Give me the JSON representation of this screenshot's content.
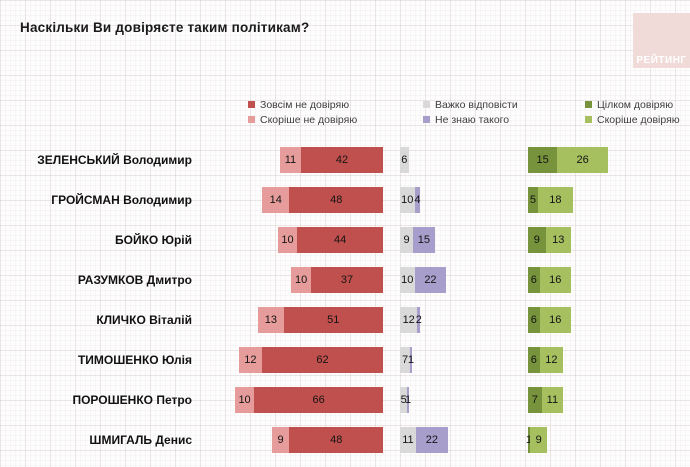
{
  "title": "Наскільки Ви довіряєте таким політикам?",
  "logo": {
    "text": "РЕЙТИНГ",
    "bg_color": "#f1dbd8"
  },
  "legend": {
    "items": [
      {
        "label": "Зовсім не довіряю",
        "color": "#c0504d"
      },
      {
        "label": "Скоріше не довіряю",
        "color": "#e59c9b"
      },
      {
        "label": "Важко відповісти",
        "color": "#d9d9d9"
      },
      {
        "label": "Не знаю такого",
        "color": "#a79ecb"
      },
      {
        "label": "Цілком довіряю",
        "color": "#77933c"
      },
      {
        "label": "Скоріше довіряю",
        "color": "#a6c060"
      }
    ]
  },
  "chart_data": {
    "type": "bar",
    "subtype": "horizontal-stacked-diverging",
    "unit": "%",
    "title": "Наскільки Ви довіряєте таким політикам?",
    "legend_position": "top",
    "value_labels": "inside",
    "categories": [
      "ЗЕЛЕНСЬКИЙ Володимир",
      "ГРОЙСМАН Володимир",
      "БОЙКО Юрій",
      "РАЗУМКОВ Дмитро",
      "КЛИЧКО Віталій",
      "ТИМОШЕНКО Юлія",
      "ПОРОШЕНКО Петро",
      "ШМИГАЛЬ Денис"
    ],
    "series": [
      {
        "name": "Скоріше не довіряю",
        "group": "negative",
        "color": "#e59c9b",
        "values": [
          11,
          14,
          10,
          10,
          13,
          12,
          10,
          9
        ]
      },
      {
        "name": "Зовсім не довіряю",
        "group": "negative",
        "color": "#c0504d",
        "values": [
          42,
          48,
          44,
          37,
          51,
          62,
          66,
          48
        ]
      },
      {
        "name": "Важко відповісти",
        "group": "neutral",
        "color": "#d9d9d9",
        "values": [
          6,
          10,
          9,
          10,
          12,
          7,
          5,
          11
        ]
      },
      {
        "name": "Не знаю такого",
        "group": "neutral",
        "color": "#a79ecb",
        "values": [
          0,
          4,
          15,
          22,
          2,
          1,
          1,
          22
        ]
      },
      {
        "name": "Цілком довіряю",
        "group": "positive",
        "color": "#77933c",
        "values": [
          15,
          5,
          9,
          6,
          6,
          6,
          7,
          1
        ]
      },
      {
        "name": "Скоріше довіряю",
        "group": "positive",
        "color": "#a6c060",
        "values": [
          26,
          18,
          13,
          16,
          16,
          12,
          11,
          9
        ]
      }
    ]
  }
}
